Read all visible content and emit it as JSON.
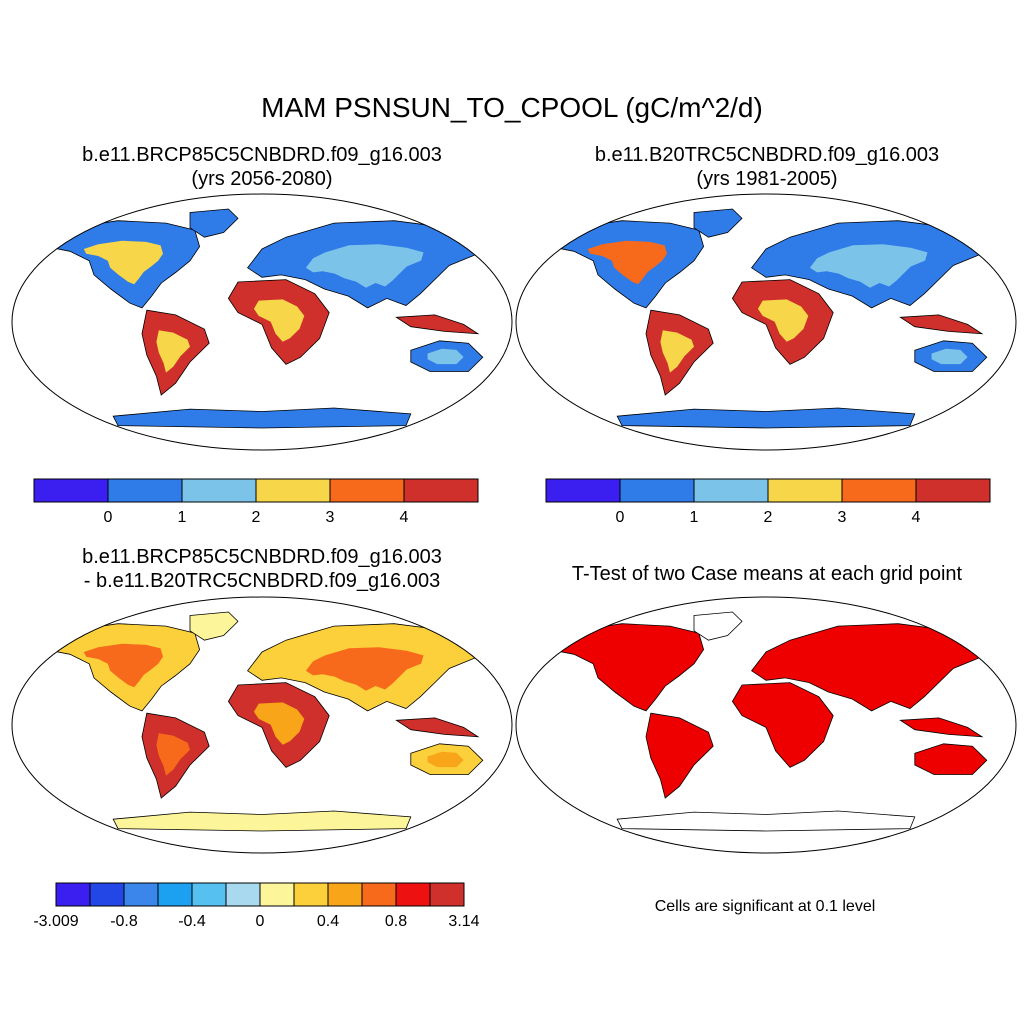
{
  "main_title": "MAM PSNSUN_TO_CPOOL (gC/m^2/d)",
  "panels": {
    "p1": {
      "line1": "b.e11.BRCP85C5CNBDRD.f09_g16.003",
      "line2": "(yrs 2056-2080)"
    },
    "p2": {
      "line1": "b.e11.B20TRC5CNBDRD.f09_g16.003",
      "line2": "(yrs 1981-2005)"
    },
    "p3": {
      "line1": "b.e11.BRCP85C5CNBDRD.f09_g16.003",
      "line2": "- b.e11.B20TRC5CNBDRD.f09_g16.003"
    },
    "p4": {
      "line1": "T-Test of two Case means at each grid point"
    }
  },
  "significance_note": "Cells are significant at 0.1 level",
  "colorbars": {
    "absolute": {
      "colors": [
        "#3a1ff0",
        "#2f7be8",
        "#7cc3ea",
        "#f7d64a",
        "#f76a1c",
        "#d0302b"
      ],
      "labels": [
        "0",
        "1",
        "2",
        "3",
        "4"
      ]
    },
    "difference": {
      "colors": [
        "#3a1ff0",
        "#2346e6",
        "#3a86ea",
        "#1ca0f0",
        "#56c0f0",
        "#a9d9ef",
        "#fdf59a",
        "#fbd03a",
        "#f8a51a",
        "#f76a1c",
        "#ee1111",
        "#d0302b"
      ],
      "labels": [
        "-3.009",
        "-0.8",
        "-0.4",
        "0",
        "0.4",
        "0.8",
        "3.14"
      ]
    }
  },
  "map_colors": {
    "ocean": "#ffffff",
    "coast": "#000000",
    "significant": "#ee0000"
  }
}
